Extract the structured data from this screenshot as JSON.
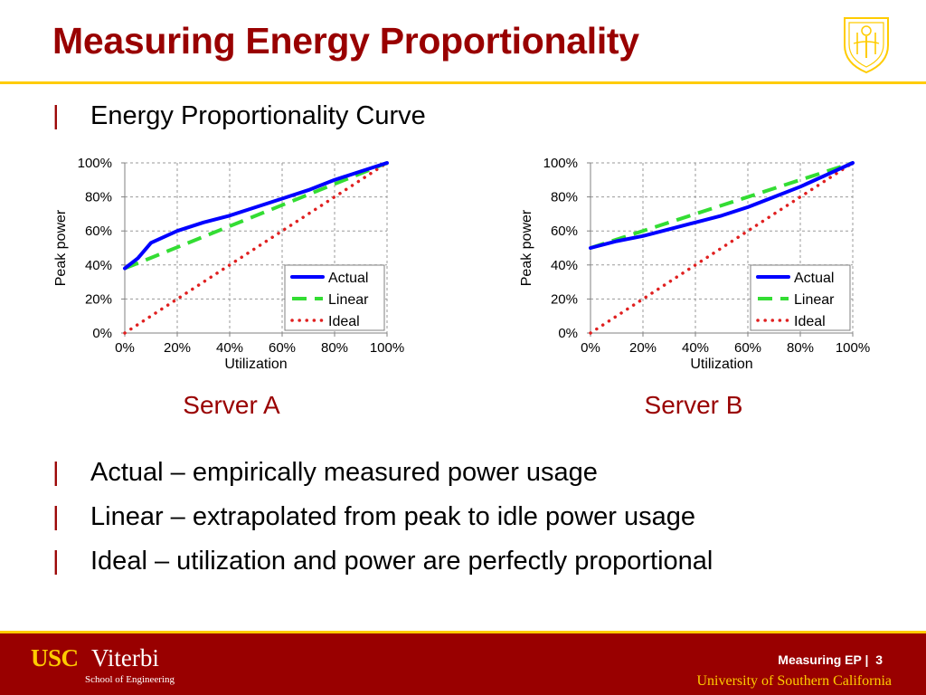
{
  "slide": {
    "title": "Measuring Energy Proportionality",
    "heading_bullet": "Energy Proportionality Curve",
    "bullet_marker": "|",
    "bullets": [
      "Actual – empirically measured power usage",
      "Linear – extrapolated from peak to idle power usage",
      "Ideal – utilization and power are perfectly proportional"
    ]
  },
  "chart_data": [
    {
      "type": "line",
      "caption": "Server A",
      "xlabel": "Utilization",
      "ylabel": "Peak power",
      "xlim": [
        0,
        100
      ],
      "ylim": [
        0,
        100
      ],
      "x_ticks": [
        "0%",
        "20%",
        "40%",
        "60%",
        "80%",
        "100%"
      ],
      "y_ticks": [
        "0%",
        "20%",
        "40%",
        "60%",
        "80%",
        "100%"
      ],
      "grid": true,
      "legend_position": "bottom-right",
      "series": [
        {
          "name": "Actual",
          "color": "#0000FF",
          "style": "solid",
          "x": [
            0,
            5,
            10,
            20,
            30,
            40,
            50,
            60,
            70,
            80,
            90,
            100
          ],
          "y": [
            38,
            44,
            53,
            60,
            65,
            69,
            74,
            79,
            84,
            90,
            95,
            100
          ]
        },
        {
          "name": "Linear",
          "color": "#33DD33",
          "style": "dashed",
          "x": [
            0,
            100
          ],
          "y": [
            38,
            100
          ]
        },
        {
          "name": "Ideal",
          "color": "#E02020",
          "style": "dotted",
          "x": [
            0,
            100
          ],
          "y": [
            0,
            100
          ]
        }
      ]
    },
    {
      "type": "line",
      "caption": "Server B",
      "xlabel": "Utilization",
      "ylabel": "Peak power",
      "xlim": [
        0,
        100
      ],
      "ylim": [
        0,
        100
      ],
      "x_ticks": [
        "0%",
        "20%",
        "40%",
        "60%",
        "80%",
        "100%"
      ],
      "y_ticks": [
        "0%",
        "20%",
        "40%",
        "60%",
        "80%",
        "100%"
      ],
      "grid": true,
      "legend_position": "bottom-right",
      "series": [
        {
          "name": "Actual",
          "color": "#0000FF",
          "style": "solid",
          "x": [
            0,
            10,
            20,
            30,
            40,
            50,
            60,
            70,
            80,
            90,
            100
          ],
          "y": [
            50,
            54,
            57,
            61,
            65,
            69,
            74,
            80,
            86,
            93,
            100
          ]
        },
        {
          "name": "Linear",
          "color": "#33DD33",
          "style": "dashed",
          "x": [
            0,
            100
          ],
          "y": [
            50,
            100
          ]
        },
        {
          "name": "Ideal",
          "color": "#E02020",
          "style": "dotted",
          "x": [
            0,
            100
          ],
          "y": [
            0,
            100
          ]
        }
      ]
    }
  ],
  "footer": {
    "logo_usc": "USC",
    "logo_viterbi": "Viterbi",
    "logo_school": "School of Engineering",
    "page_label": "Measuring EP |",
    "page_number": "3",
    "university": "University of Southern California"
  },
  "colors": {
    "brand_cardinal": "#990000",
    "brand_gold": "#FFCC00"
  },
  "icons": {
    "seal": "usc-seal-icon"
  }
}
